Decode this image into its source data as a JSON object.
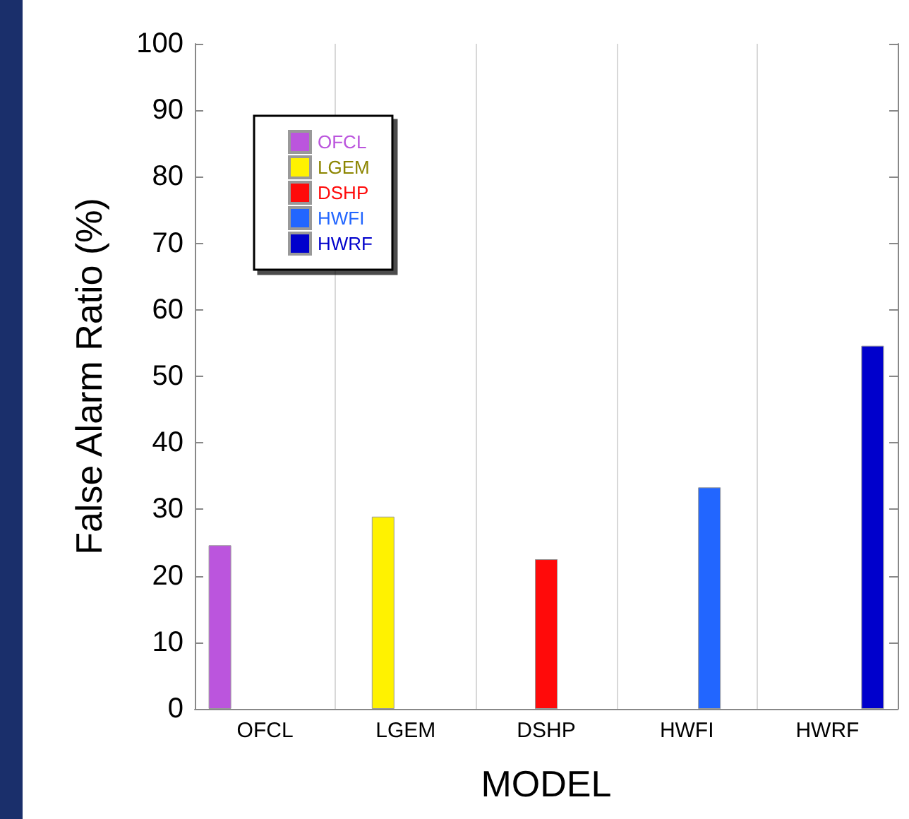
{
  "chart_data": {
    "type": "bar",
    "xlabel": "MODEL",
    "ylabel": "False Alarm Ratio (%)",
    "categories": [
      "OFCL",
      "LGEM",
      "DSHP",
      "HWFI",
      "HWRF"
    ],
    "series": [
      {
        "name": "OFCL",
        "color": "#bb55dd",
        "values": [
          24.6,
          null,
          null,
          null,
          null
        ]
      },
      {
        "name": "LGEM",
        "color": "#fff200",
        "values": [
          null,
          28.9,
          null,
          null,
          null
        ]
      },
      {
        "name": "DSHP",
        "color": "#ff0a0a",
        "values": [
          null,
          null,
          22.5,
          null,
          null
        ]
      },
      {
        "name": "HWFI",
        "color": "#2266ff",
        "values": [
          null,
          null,
          null,
          33.3,
          null
        ]
      },
      {
        "name": "HWRF",
        "color": "#0000cc",
        "values": [
          null,
          null,
          null,
          null,
          54.6
        ]
      }
    ],
    "ylim": [
      0,
      100
    ],
    "yticks": [
      0,
      10,
      20,
      30,
      40,
      50,
      60,
      70,
      80,
      90,
      100
    ],
    "grid": "x",
    "legend": "top left"
  }
}
